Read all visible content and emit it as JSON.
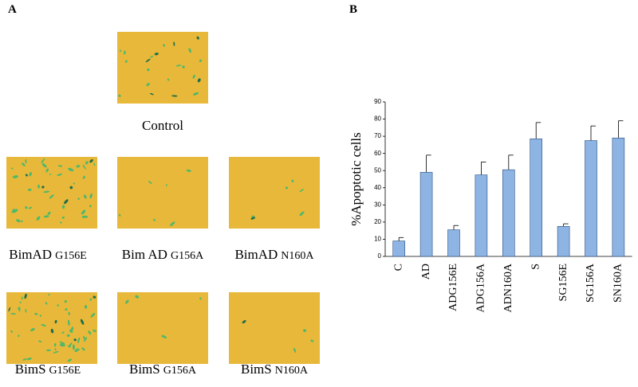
{
  "panel_labels": [
    "A",
    "B"
  ],
  "panel_a": {
    "images": [
      {
        "name": "Control",
        "mutation": null
      },
      {
        "name": "BimAD",
        "mutation": "G156E"
      },
      {
        "name": "Bim AD",
        "mutation": "G156A"
      },
      {
        "name": "BimAD",
        "mutation": "N160A"
      },
      {
        "name": "BimS",
        "mutation": "G156E"
      },
      {
        "name": "BimS",
        "mutation": "G156A"
      },
      {
        "name": "BimS",
        "mutation": "N160A"
      }
    ]
  },
  "chart_data": {
    "type": "bar",
    "y_label": "%Apoptotic cells",
    "categories": [
      "C",
      "AD",
      "ADG156E",
      "ADG156A",
      "ADN160A",
      "S",
      "SG156E",
      "SG156A",
      "SN160A"
    ],
    "values": [
      9,
      49,
      15.5,
      47.5,
      50.5,
      68.5,
      17.5,
      67.5,
      69
    ],
    "errors": [
      2,
      10,
      2.5,
      7.5,
      8.5,
      9.5,
      1.5,
      8.5,
      10
    ],
    "color": "#8db4e2",
    "ylim": [
      0,
      90
    ],
    "yticks": [
      0,
      10,
      20,
      30,
      40,
      50,
      60,
      70,
      80,
      90
    ]
  }
}
